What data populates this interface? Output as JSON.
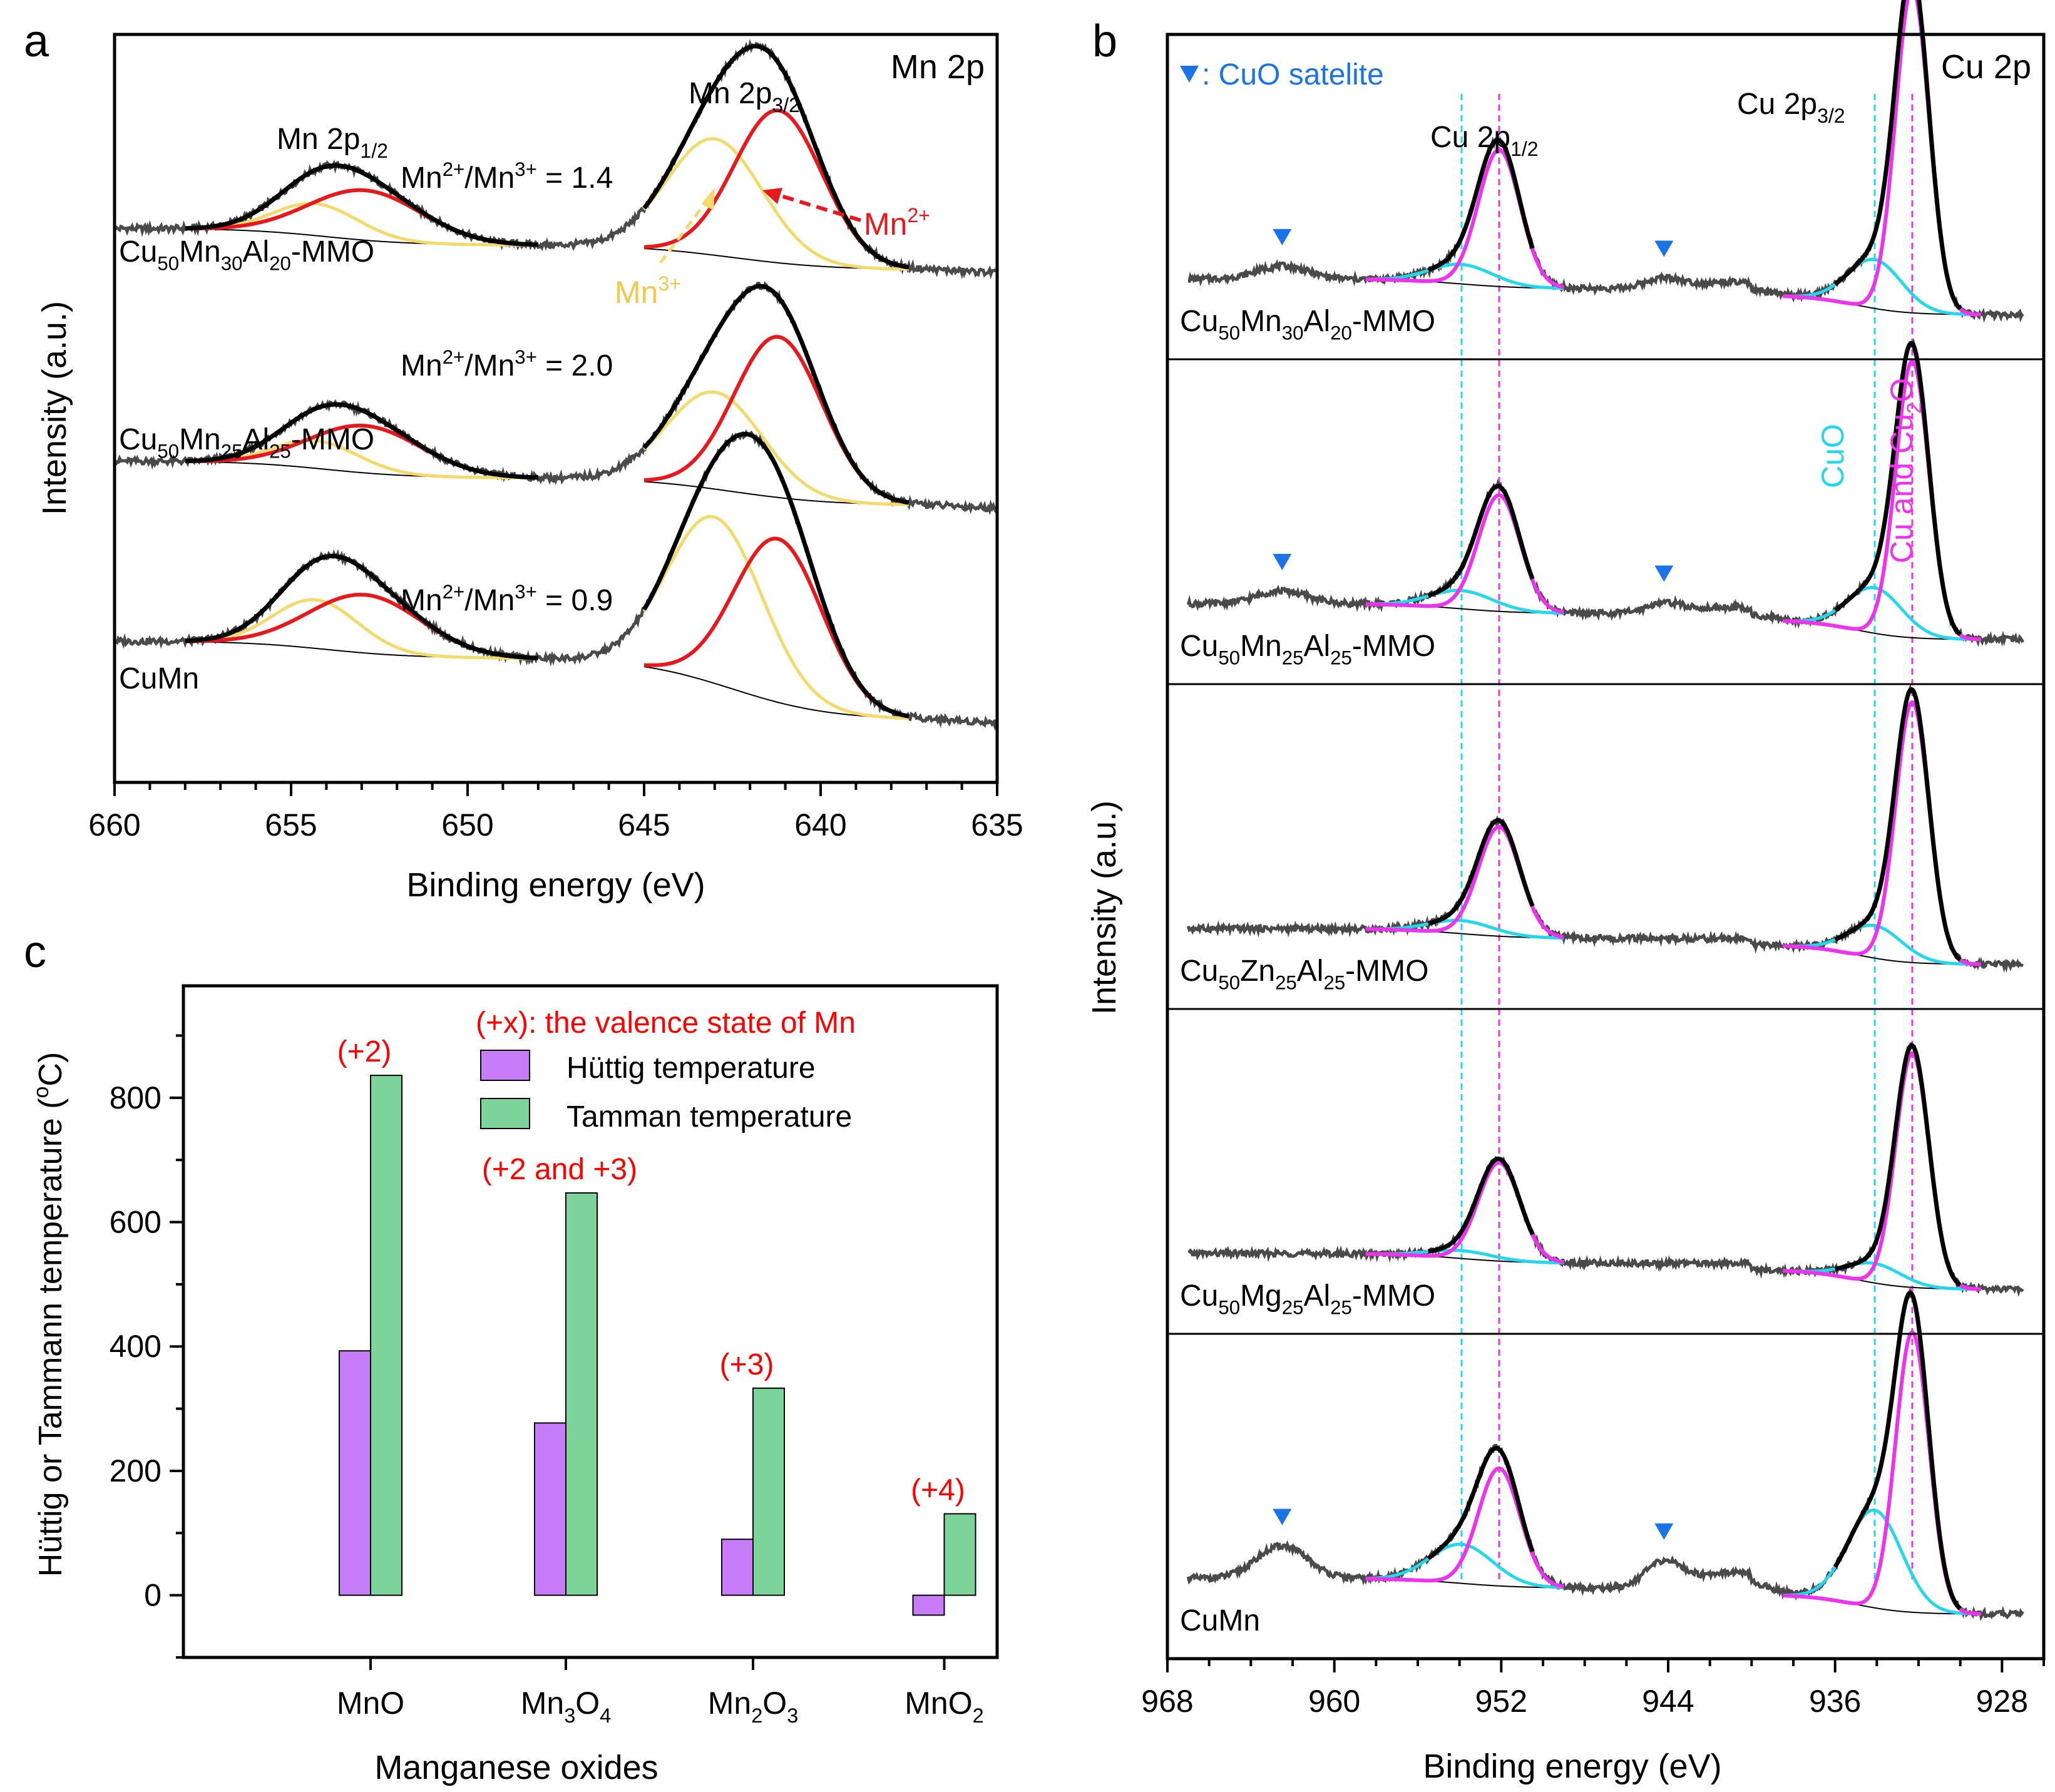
{
  "panel_letters": [
    "a",
    "b",
    "c"
  ],
  "colors": {
    "frame": "#000000",
    "raw": "#4a4a4a",
    "envelope": "#000000",
    "baseline": "#000000",
    "mn2": "#e8181d",
    "mn3": "#f4d96b",
    "cu_main": "#ee33ee",
    "cuo": "#23d7ec",
    "satellite": "#1a73e8",
    "annot_red": "#ff0000",
    "bar_huttig": "#c77dfa",
    "bar_tamman": "#7dd49a"
  },
  "chart_data": [
    {
      "id": "a",
      "type": "line",
      "title": "Mn 2p",
      "xlabel": "Binding energy (eV)",
      "ylabel": "Intensity (a.u.)",
      "xlim": [
        660,
        635
      ],
      "x_reversed": true,
      "xticks": [
        660,
        655,
        650,
        645,
        640,
        635
      ],
      "xticklabels": [
        "660",
        "655",
        "650",
        "645",
        "640",
        "635"
      ],
      "ylim": [
        0,
        5.4
      ],
      "peak_labels": {
        "p32": {
          "main": "Mn 2p",
          "sub": "3/2"
        },
        "p12": {
          "main": "Mn 2p",
          "sub": "1/2"
        }
      },
      "components": [
        "Mn2+",
        "Mn3+"
      ],
      "annotations": [
        {
          "base": "Mn",
          "sup": "2+",
          "color": "mn2"
        },
        {
          "base": "Mn",
          "sup": "3+",
          "color": "mn3"
        }
      ],
      "series": [
        {
          "name": "Cu50Mn30Al20-MMO",
          "label_parts": [
            [
              "Cu",
              ""
            ],
            [
              "50",
              "sub"
            ],
            [
              "Mn",
              ""
            ],
            [
              "30",
              "sub"
            ],
            [
              "Al",
              ""
            ],
            [
              "20",
              "sub"
            ],
            [
              "-MMO",
              ""
            ]
          ],
          "ratio_label": "Mn2+/Mn3+ = 1.4",
          "ratio_parts": [
            [
              "Mn",
              ""
            ],
            [
              "2+",
              "sup"
            ],
            [
              "/Mn",
              ""
            ],
            [
              "3+",
              "sup"
            ],
            [
              " = 1.4",
              ""
            ]
          ],
          "offset": 3.7,
          "amp_32_2": 1.1,
          "amp_32_3": 0.84,
          "amp_12_2": 0.36,
          "amp_12_3": 0.23,
          "bg_step": 0.18
        },
        {
          "name": "Cu50Mn25Al25-MMO",
          "label_parts": [
            [
              "Cu",
              ""
            ],
            [
              "50",
              "sub"
            ],
            [
              "Mn",
              ""
            ],
            [
              "25",
              "sub"
            ],
            [
              "Al",
              ""
            ],
            [
              "25",
              "sub"
            ],
            [
              "-MMO",
              ""
            ]
          ],
          "ratio_label": "Mn2+/Mn3+ = 2.0",
          "ratio_parts": [
            [
              "Mn",
              ""
            ],
            [
              "2+",
              "sup"
            ],
            [
              "/Mn",
              ""
            ],
            [
              "3+",
              "sup"
            ],
            [
              " = 2.0",
              ""
            ]
          ],
          "offset": 2.0,
          "amp_32_2": 1.16,
          "amp_32_3": 0.7,
          "amp_12_2": 0.34,
          "amp_12_3": 0.2,
          "bg_step": 0.2
        },
        {
          "name": "CuMn",
          "label_parts": [
            [
              "CuMn",
              ""
            ]
          ],
          "ratio_label": "Mn2+/Mn3+ = 0.9",
          "ratio_parts": [
            [
              "Mn",
              ""
            ],
            [
              "2+",
              "sup"
            ],
            [
              "/Mn",
              ""
            ],
            [
              "3+",
              "sup"
            ],
            [
              " = 0.9",
              ""
            ]
          ],
          "offset": 0.45,
          "amp_32_2": 1.18,
          "amp_32_3": 1.2,
          "amp_12_2": 0.42,
          "amp_12_3": 0.35,
          "bg_step": 0.45
        }
      ]
    },
    {
      "id": "b",
      "type": "line",
      "title": "Cu 2p",
      "xlabel": "Binding energy (eV)",
      "ylabel": "Intensity (a.u.)",
      "xlim": [
        968,
        926
      ],
      "x_reversed": true,
      "xticks": [
        968,
        960,
        952,
        944,
        936,
        928
      ],
      "xticklabels": [
        "968",
        "960",
        "952",
        "944",
        "936",
        "928"
      ],
      "legend_satellite": ": CuO satelite",
      "peak_labels": {
        "p32": {
          "main": "Cu 2p",
          "sub": "3/2"
        },
        "p12": {
          "main": "Cu 2p",
          "sub": "1/2"
        }
      },
      "reference_lines": [
        {
          "label": "CuO",
          "x_eV": 934.1,
          "x2_eV": 953.9,
          "color": "cuo"
        },
        {
          "label_parts": [
            [
              "Cu and Cu",
              ""
            ],
            [
              "2",
              "sub"
            ],
            [
              "O",
              ""
            ]
          ],
          "x_eV": 932.3,
          "x2_eV": 952.1,
          "color": "cu_main"
        }
      ],
      "series": [
        {
          "name": "Cu50Mn30Al20-MMO",
          "label_parts": [
            [
              "Cu",
              ""
            ],
            [
              "50",
              "sub"
            ],
            [
              "Mn",
              ""
            ],
            [
              "30",
              "sub"
            ],
            [
              "Al",
              ""
            ],
            [
              "20",
              "sub"
            ],
            [
              "-MMO",
              ""
            ]
          ],
          "main_amp": 1.0,
          "cuo_amp": 0.15,
          "sat": true
        },
        {
          "name": "Cu50Mn25Al25-MMO",
          "label_parts": [
            [
              "Cu",
              ""
            ],
            [
              "50",
              "sub"
            ],
            [
              "Mn",
              ""
            ],
            [
              "25",
              "sub"
            ],
            [
              "Al",
              ""
            ],
            [
              "25",
              "sub"
            ],
            [
              "-MMO",
              ""
            ]
          ],
          "main_amp": 0.85,
          "cuo_amp": 0.14,
          "sat": true
        },
        {
          "name": "Cu50Zn25Al25-MMO",
          "label_parts": [
            [
              "Cu",
              ""
            ],
            [
              "50",
              "sub"
            ],
            [
              "Zn",
              ""
            ],
            [
              "25",
              "sub"
            ],
            [
              "Al",
              ""
            ],
            [
              "25",
              "sub"
            ],
            [
              "-MMO",
              ""
            ]
          ],
          "main_amp": 0.8,
          "cuo_amp": 0.1,
          "sat": false
        },
        {
          "name": "Cu50Mg25Al25-MMO",
          "label_parts": [
            [
              "Cu",
              ""
            ],
            [
              "50",
              "sub"
            ],
            [
              "Mg",
              ""
            ],
            [
              "25",
              "sub"
            ],
            [
              "Al",
              ""
            ],
            [
              "25",
              "sub"
            ],
            [
              "-MMO",
              ""
            ]
          ],
          "main_amp": 0.72,
          "cuo_amp": 0.06,
          "sat": false
        },
        {
          "name": "CuMn",
          "label_parts": [
            [
              "CuMn",
              ""
            ]
          ],
          "main_amp": 0.86,
          "cuo_amp": 0.3,
          "sat": true
        }
      ]
    },
    {
      "id": "c",
      "type": "bar",
      "xlabel": "Manganese oxides",
      "ylabel": "Hüttig or Tammann temperature (ºC)",
      "ylabel_parts": [
        [
          "Hüttig or Tammann temperature (",
          ""
        ],
        [
          "o",
          "sup"
        ],
        [
          "C)",
          ""
        ]
      ],
      "ylim": [
        -100,
        980
      ],
      "yticks": [
        0,
        200,
        400,
        600,
        800
      ],
      "yticklabels": [
        "0",
        "200",
        "400",
        "600",
        "800"
      ],
      "categories": [
        "MnO",
        "Mn3O4",
        "Mn2O3",
        "MnO2"
      ],
      "category_parts": [
        [
          [
            "MnO",
            ""
          ]
        ],
        [
          [
            "Mn",
            ""
          ],
          [
            "3",
            "sub"
          ],
          [
            "O",
            ""
          ],
          [
            "4",
            "sub"
          ]
        ],
        [
          [
            "Mn",
            ""
          ],
          [
            "2",
            "sub"
          ],
          [
            "O",
            ""
          ],
          [
            "3",
            "sub"
          ]
        ],
        [
          [
            "MnO",
            ""
          ],
          [
            "2",
            "sub"
          ]
        ]
      ],
      "valence_labels": [
        "(+2)",
        "(+2 and +3)",
        "(+3)",
        "(+4)"
      ],
      "valence_note": "(+x): the valence state of  Mn",
      "series": [
        {
          "name": "Hüttig temperature",
          "values": [
            393,
            277,
            90,
            -32
          ],
          "color": "bar_huttig"
        },
        {
          "name": "Tamman temperature",
          "values": [
            836,
            647,
            333,
            131
          ],
          "color": "bar_tamman"
        }
      ]
    }
  ]
}
